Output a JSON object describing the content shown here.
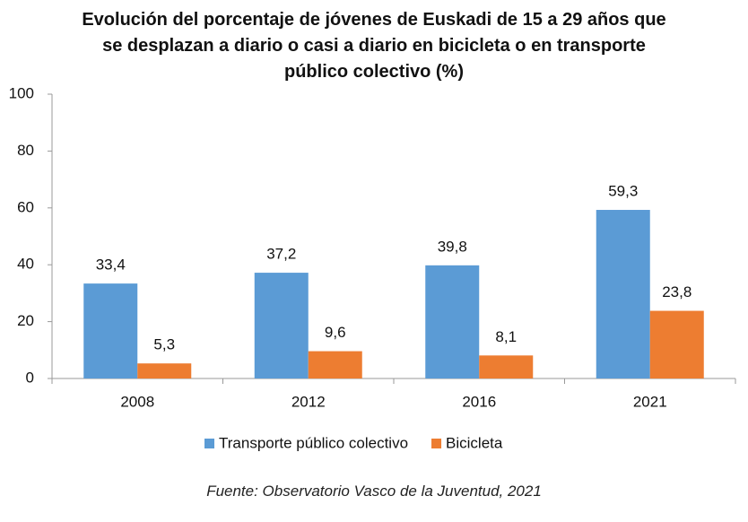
{
  "chart_data": {
    "type": "bar",
    "title": "Evolución del porcentaje de jóvenes de Euskadi de 15 a 29 años que se desplazan a diario o casi a diario en bicicleta o en transporte público colectivo (%)",
    "categories": [
      "2008",
      "2012",
      "2016",
      "2021"
    ],
    "series": [
      {
        "name": "Transporte público colectivo",
        "color": "#5b9bd5",
        "values": [
          33.4,
          37.2,
          39.8,
          59.3
        ],
        "value_labels": [
          "33,4",
          "37,2",
          "39,8",
          "59,3"
        ]
      },
      {
        "name": "Bicicleta",
        "color": "#ed7d31",
        "values": [
          5.3,
          9.6,
          8.1,
          23.8
        ],
        "value_labels": [
          "5,3",
          "9,6",
          "8,1",
          "23,8"
        ]
      }
    ],
    "ylim": [
      0,
      100
    ],
    "yticks": [
      0,
      20,
      40,
      60,
      80,
      100
    ],
    "grid": false,
    "legend": "bottom",
    "source": "Fuente: Observatorio Vasco de la Juventud, 2021"
  }
}
